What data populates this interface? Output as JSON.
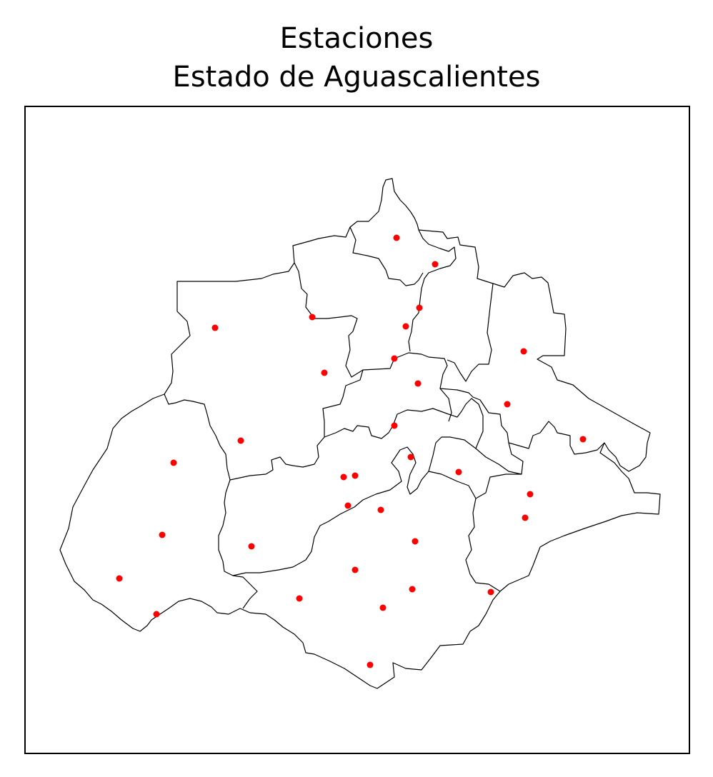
{
  "title": {
    "line1": "Estaciones",
    "line2": "Estado de Aguascalientes"
  },
  "colors": {
    "station": "#ff0000",
    "boundary": "#000000",
    "background": "#ffffff"
  },
  "stations_count": 36
}
